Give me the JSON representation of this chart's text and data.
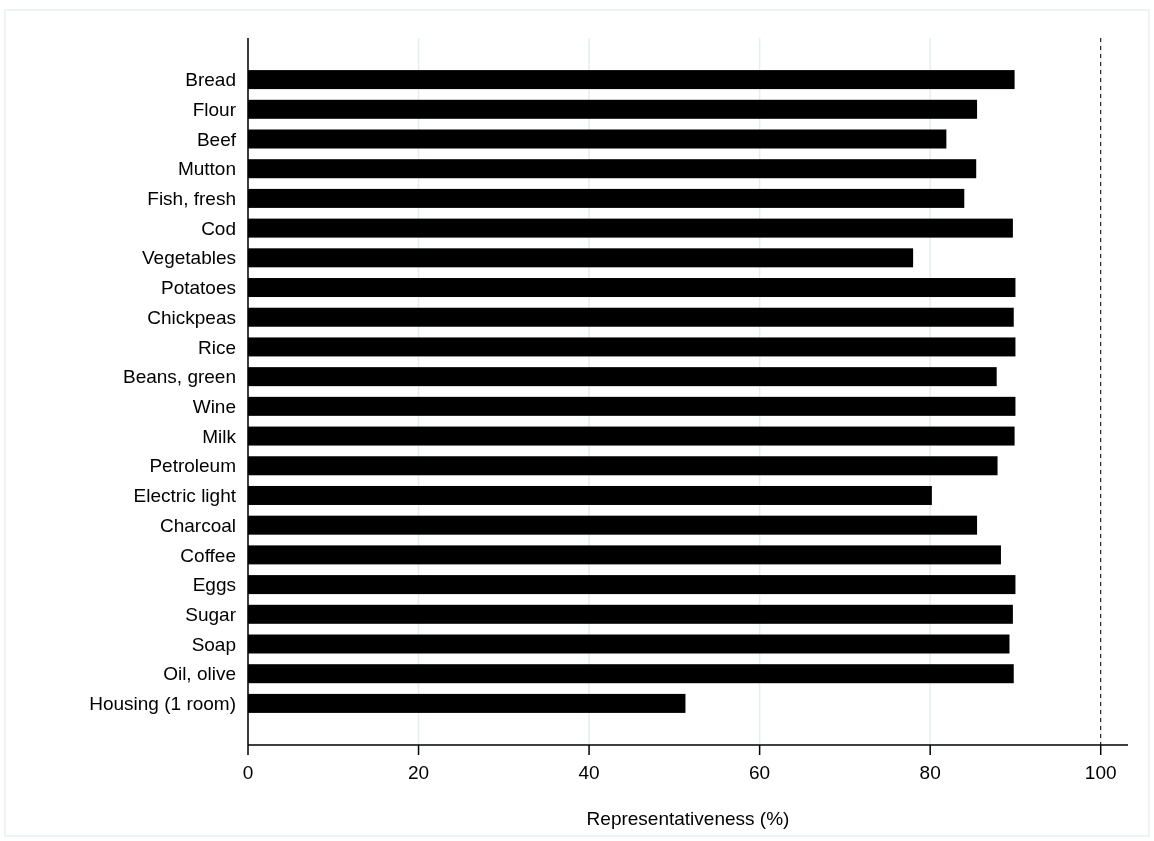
{
  "chart_data": {
    "type": "bar",
    "orientation": "horizontal",
    "xlabel": "Representativeness (%)",
    "categories": [
      "Bread",
      "Flour",
      "Beef",
      "Mutton",
      "Fish, fresh",
      "Cod",
      "Vegetables",
      "Potatoes",
      "Chickpeas",
      "Rice",
      "Beans, green",
      "Wine",
      "Milk",
      "Petroleum",
      "Electric light",
      "Charcoal",
      "Coffee",
      "Eggs",
      "Sugar",
      "Soap",
      "Oil, olive",
      "Housing (1 room)"
    ],
    "values": [
      89.9,
      85.5,
      81.9,
      85.4,
      84.0,
      89.7,
      78.0,
      90.0,
      89.8,
      90.0,
      87.8,
      90.0,
      89.9,
      87.9,
      80.2,
      85.5,
      88.3,
      90.0,
      89.7,
      89.3,
      89.8,
      51.3
    ],
    "color": "#000000",
    "xlim": [
      0,
      103.2
    ],
    "xticks": [
      0,
      20,
      40,
      60,
      80,
      100
    ],
    "grid": "x",
    "ref_lines": [
      {
        "axis": "x",
        "value": 100,
        "color": "#000000",
        "line_style": "dashed"
      }
    ]
  }
}
